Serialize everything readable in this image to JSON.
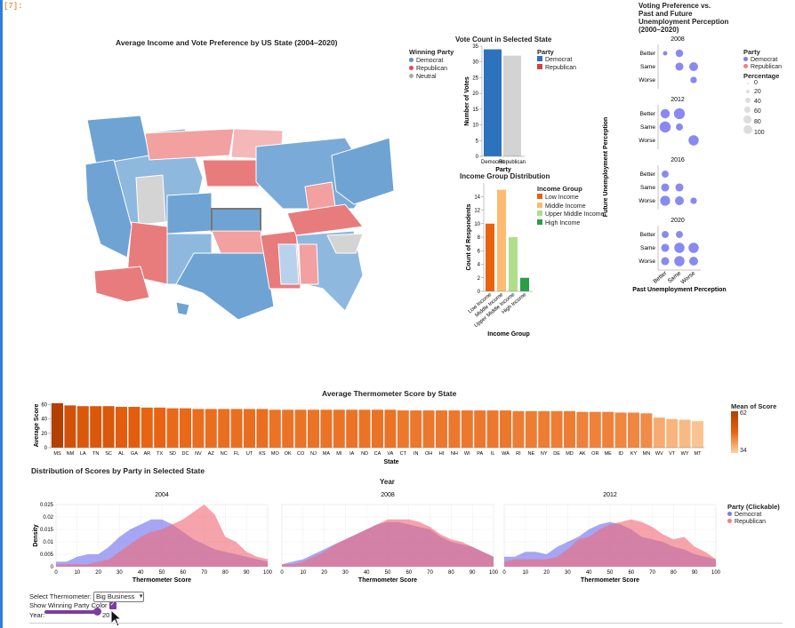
{
  "cell": {
    "label": "[7]:"
  },
  "map": {
    "title": "Average Income and Vote Preference by US State (2004–2020)",
    "legend_title": "Winning Party",
    "legend": [
      {
        "label": "Democrat",
        "color": "#5b8fd0"
      },
      {
        "label": "Republican",
        "color": "#e34a4a"
      },
      {
        "label": "Neutral",
        "color": "#aaaaaa"
      }
    ]
  },
  "vote_count": {
    "title": "Vote Count in Selected State",
    "legend_title": "Party",
    "legend": [
      {
        "label": "Democrat",
        "color": "#2d72bd"
      },
      {
        "label": "Republican",
        "color": "#d94040"
      }
    ]
  },
  "income": {
    "title": "Income Group Distribution",
    "legend_title": "Income Group",
    "legend": [
      {
        "label": "Low Income",
        "color": "#e8620f"
      },
      {
        "label": "Middle Income",
        "color": "#fdbb71"
      },
      {
        "label": "Upper Middle Income",
        "color": "#b0de8c"
      },
      {
        "label": "High Income",
        "color": "#2a9e46"
      }
    ]
  },
  "voting_pref": {
    "title_lines": [
      "Voting Preference vs.",
      "Past and Future",
      "Unemployment Perception",
      "(2000–2020)"
    ],
    "legend_party_title": "Party",
    "legend_party": [
      {
        "label": "Democrat",
        "color": "#7b7cf0"
      },
      {
        "label": "Republican",
        "color": "#f08080"
      }
    ],
    "legend_size_title": "Percentage",
    "legend_sizes": [
      "0",
      "20",
      "40",
      "60",
      "80",
      "100"
    ]
  },
  "thermo": {
    "title": "Average Thermometer Score by State",
    "legend_title": "Mean of Score",
    "legend_max": "62",
    "legend_min": "34"
  },
  "density": {
    "title": "Distribution of Scores by Party in Selected State",
    "year_label": "Year",
    "legend_title": "Party (Clickable)",
    "legend": [
      {
        "label": "Democrat",
        "color": "#7b7cf0"
      },
      {
        "label": "Republican",
        "color": "#f08080"
      }
    ]
  },
  "controls": {
    "thermometer_label": "Select Thermometer:",
    "thermometer_value": "Big Business",
    "winning_color_label": "Show Winning Party Color",
    "year_label": "Year:",
    "year_value": "20"
  },
  "chart_data": [
    {
      "type": "bar",
      "id": "vote_count",
      "title": "Vote Count in Selected State",
      "categories": [
        "Democrat",
        "Republican"
      ],
      "values": [
        34,
        32
      ],
      "colors": [
        "#2d72bd",
        "#d3d3d3"
      ],
      "xlabel": "Party",
      "ylabel": "Number of Votes",
      "ylim": [
        0,
        35
      ],
      "yticks": [
        0,
        5,
        10,
        15,
        20,
        25,
        30,
        35
      ]
    },
    {
      "type": "bar",
      "id": "income_groups",
      "title": "Income Group Distribution",
      "categories": [
        "Low Income",
        "Middle Income",
        "Upper Middle Income",
        "High Income"
      ],
      "values": [
        10,
        15,
        8,
        2
      ],
      "colors": [
        "#e8620f",
        "#fdbb71",
        "#b0de8c",
        "#2a9e46"
      ],
      "xlabel": "Income Group",
      "ylabel": "Count of Respondents",
      "ylim": [
        0,
        16
      ],
      "yticks": [
        0,
        2,
        4,
        6,
        8,
        10,
        12,
        14
      ]
    },
    {
      "type": "scatter",
      "id": "voting_pref",
      "xlabel": "Past Unemployment Perception",
      "ylabel": "Future Unemployment Perception",
      "x_categories": [
        "Better",
        "Same",
        "Worse"
      ],
      "y_categories": [
        "Better",
        "Same",
        "Worse"
      ],
      "facets": [
        {
          "year": "2008",
          "points": [
            {
              "x": "Better",
              "y": "Better",
              "party": "Democrat",
              "pct": 3
            },
            {
              "x": "Same",
              "y": "Better",
              "party": "Democrat",
              "pct": 25
            },
            {
              "x": "Same",
              "y": "Same",
              "party": "Democrat",
              "pct": 30
            },
            {
              "x": "Worse",
              "y": "Same",
              "party": "Democrat",
              "pct": 40
            },
            {
              "x": "Worse",
              "y": "Worse",
              "party": "Democrat",
              "pct": 15
            }
          ]
        },
        {
          "year": "2012",
          "points": [
            {
              "x": "Better",
              "y": "Better",
              "party": "Democrat",
              "pct": 45
            },
            {
              "x": "Same",
              "y": "Better",
              "party": "Democrat",
              "pct": 70
            },
            {
              "x": "Better",
              "y": "Same",
              "party": "Democrat",
              "pct": 75
            },
            {
              "x": "Same",
              "y": "Same",
              "party": "Democrat",
              "pct": 20
            },
            {
              "x": "Worse",
              "y": "Worse",
              "party": "Democrat",
              "pct": 60
            }
          ]
        },
        {
          "year": "2016",
          "points": [
            {
              "x": "Better",
              "y": "Better",
              "party": "Democrat",
              "pct": 20
            },
            {
              "x": "Better",
              "y": "Same",
              "party": "Democrat",
              "pct": 30
            },
            {
              "x": "Same",
              "y": "Same",
              "party": "Democrat",
              "pct": 30
            },
            {
              "x": "Better",
              "y": "Worse",
              "party": "Democrat",
              "pct": 55
            },
            {
              "x": "Same",
              "y": "Worse",
              "party": "Democrat",
              "pct": 40
            },
            {
              "x": "Worse",
              "y": "Worse",
              "party": "Democrat",
              "pct": 15
            }
          ]
        },
        {
          "year": "2020",
          "points": [
            {
              "x": "Better",
              "y": "Better",
              "party": "Democrat",
              "pct": 20
            },
            {
              "x": "Same",
              "y": "Better",
              "party": "Democrat",
              "pct": 20
            },
            {
              "x": "Better",
              "y": "Same",
              "party": "Democrat",
              "pct": 30
            },
            {
              "x": "Same",
              "y": "Same",
              "party": "Democrat",
              "pct": 60
            },
            {
              "x": "Worse",
              "y": "Same",
              "party": "Democrat",
              "pct": 60
            },
            {
              "x": "Better",
              "y": "Worse",
              "party": "Democrat",
              "pct": 30
            },
            {
              "x": "Same",
              "y": "Worse",
              "party": "Democrat",
              "pct": 60
            },
            {
              "x": "Worse",
              "y": "Worse",
              "party": "Democrat",
              "pct": 40
            }
          ]
        }
      ]
    },
    {
      "type": "bar",
      "id": "thermometer",
      "title": "Average Thermometer Score by State",
      "xlabel": "State",
      "ylabel": "Average Score",
      "ylim": [
        0,
        62
      ],
      "yticks": [
        0,
        20,
        40,
        60
      ],
      "categories": [
        "MS",
        "NM",
        "LA",
        "TN",
        "SC",
        "AL",
        "GA",
        "AR",
        "TX",
        "SD",
        "DC",
        "NV",
        "AZ",
        "NC",
        "FL",
        "UT",
        "KS",
        "MO",
        "OK",
        "CO",
        "NJ",
        "MA",
        "MI",
        "IA",
        "ND",
        "CA",
        "VA",
        "CT",
        "IN",
        "OH",
        "HI",
        "NH",
        "WI",
        "PA",
        "IL",
        "WA",
        "RI",
        "NE",
        "NY",
        "DE",
        "MD",
        "AK",
        "OR",
        "ME",
        "ID",
        "KY",
        "MN",
        "WV",
        "VT",
        "WY",
        "MT"
      ],
      "values": [
        62,
        59,
        58,
        58,
        58,
        57,
        57,
        56,
        56,
        55,
        55,
        54,
        54,
        54,
        54,
        54,
        54,
        53,
        53,
        53,
        53,
        53,
        53,
        53,
        53,
        53,
        53,
        52,
        52,
        52,
        52,
        52,
        52,
        52,
        52,
        52,
        51,
        51,
        51,
        51,
        51,
        50,
        50,
        50,
        49,
        49,
        48,
        42,
        40,
        39,
        37
      ],
      "color_scale": {
        "min": 34,
        "max": 62
      }
    },
    {
      "type": "area",
      "id": "density",
      "title": "Distribution of Scores by Party in Selected State",
      "xlabel": "Thermometer Score",
      "ylabel": "Density",
      "xlim": [
        0,
        100
      ],
      "ylim": [
        0,
        0.025
      ],
      "xticks": [
        0,
        10,
        20,
        30,
        40,
        50,
        60,
        70,
        80,
        90,
        100
      ],
      "yticks": [
        0,
        0.005,
        0.01,
        0.015,
        0.02,
        0.025
      ],
      "x": [
        0,
        5,
        10,
        15,
        20,
        25,
        30,
        35,
        40,
        45,
        50,
        55,
        60,
        65,
        70,
        75,
        80,
        85,
        90,
        95,
        100
      ],
      "facets": [
        {
          "year": "2004",
          "series": [
            {
              "name": "Democrat",
              "values": [
                0.002,
                0.002,
                0.004,
                0.005,
                0.005,
                0.008,
                0.012,
                0.015,
                0.017,
                0.019,
                0.019,
                0.017,
                0.014,
                0.011,
                0.009,
                0.007,
                0.006,
                0.005,
                0.004,
                0.003,
                0.002
              ]
            },
            {
              "name": "Republican",
              "values": [
                0.001,
                0.001,
                0.001,
                0.001,
                0.002,
                0.003,
                0.006,
                0.009,
                0.012,
                0.014,
                0.015,
                0.017,
                0.019,
                0.022,
                0.025,
                0.021,
                0.012,
                0.01,
                0.006,
                0.004,
                0.003
              ]
            }
          ]
        },
        {
          "year": "2008",
          "series": [
            {
              "name": "Democrat",
              "values": [
                0.001,
                0.002,
                0.003,
                0.005,
                0.007,
                0.009,
                0.011,
                0.013,
                0.015,
                0.017,
                0.018,
                0.018,
                0.017,
                0.016,
                0.015,
                0.012,
                0.01,
                0.009,
                0.008,
                0.006,
                0.004
              ]
            },
            {
              "name": "Republican",
              "values": [
                0.001,
                0.001,
                0.002,
                0.004,
                0.006,
                0.009,
                0.011,
                0.013,
                0.015,
                0.017,
                0.019,
                0.019,
                0.019,
                0.018,
                0.016,
                0.013,
                0.011,
                0.01,
                0.008,
                0.006,
                0.004
              ]
            }
          ]
        },
        {
          "year": "2012",
          "series": [
            {
              "name": "Democrat",
              "values": [
                0.004,
                0.004,
                0.006,
                0.006,
                0.005,
                0.008,
                0.01,
                0.012,
                0.015,
                0.017,
                0.018,
                0.017,
                0.015,
                0.012,
                0.011,
                0.01,
                0.008,
                0.007,
                0.005,
                0.004,
                0.003
              ]
            },
            {
              "name": "Republican",
              "values": [
                0.002,
                0.003,
                0.003,
                0.003,
                0.003,
                0.004,
                0.007,
                0.011,
                0.012,
                0.015,
                0.017,
                0.018,
                0.019,
                0.018,
                0.016,
                0.013,
                0.011,
                0.012,
                0.008,
                0.006,
                0.003
              ]
            }
          ]
        }
      ]
    }
  ]
}
